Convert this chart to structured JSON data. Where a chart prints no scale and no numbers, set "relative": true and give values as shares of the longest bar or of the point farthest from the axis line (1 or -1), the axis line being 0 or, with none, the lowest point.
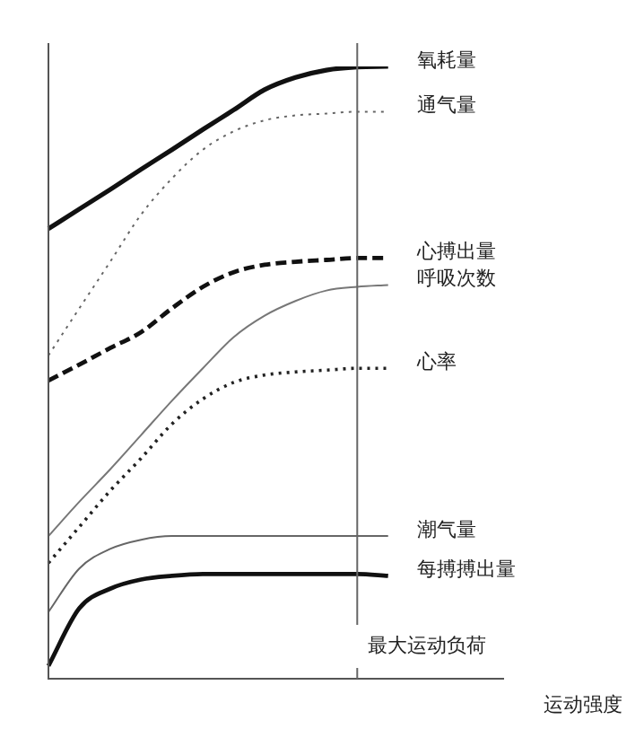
{
  "chart_data": {
    "type": "line",
    "relative": true,
    "xlabel": "运动强度",
    "legend": false,
    "annotations": [
      "最大运动负荷"
    ],
    "categories": [
      null,
      null,
      null,
      null,
      null,
      null,
      null,
      null,
      null,
      null,
      null,
      null,
      null,
      null,
      null
    ],
    "series": [
      {
        "name": "氧耗量",
        "color": "#111111",
        "line_style": "solid",
        "values": [
          0.735,
          0.767,
          0.799,
          0.832,
          0.864,
          0.897,
          0.929,
          0.962,
          0.982,
          0.994,
          0.999,
          1,
          null,
          null,
          null
        ]
      },
      {
        "name": "通气量",
        "color": "#666666",
        "line_style": "dotted",
        "values": [
          0.528,
          0.605,
          0.681,
          0.758,
          0.817,
          0.864,
          0.894,
          0.912,
          0.92,
          0.923,
          0.926,
          0.926,
          null,
          null,
          null
        ]
      },
      {
        "name": "心搏出量",
        "color": "#111111",
        "line_style": "dashed",
        "values": [
          0.487,
          0.513,
          0.54,
          0.566,
          0.605,
          0.64,
          0.664,
          0.676,
          0.681,
          0.684,
          0.687,
          0.687,
          null,
          null,
          null
        ]
      },
      {
        "name": "呼吸次数",
        "color": "#777777",
        "line_style": "solid",
        "values": [
          0.233,
          0.289,
          0.342,
          0.398,
          0.454,
          0.507,
          0.558,
          0.593,
          0.617,
          0.634,
          0.64,
          0.643,
          null,
          null,
          null
        ]
      },
      {
        "name": "心率",
        "color": "#222222",
        "line_style": "dotted",
        "values": [
          0.189,
          0.248,
          0.307,
          0.36,
          0.416,
          0.457,
          0.484,
          0.496,
          0.501,
          0.504,
          0.507,
          0.507,
          null,
          null,
          null
        ]
      },
      {
        "name": "潮气量",
        "color": "#666666",
        "line_style": "solid",
        "values": [
          0.109,
          0.18,
          0.212,
          0.227,
          0.233,
          0.233,
          0.233,
          0.233,
          0.233,
          0.233,
          0.233,
          0.233,
          null,
          null,
          null
        ]
      },
      {
        "name": "每搏搏出量",
        "color": "#111111",
        "line_style": "solid",
        "values": [
          0.021,
          0.115,
          0.147,
          0.162,
          0.168,
          0.171,
          0.171,
          0.171,
          0.171,
          0.171,
          0.171,
          0.168,
          null,
          null,
          null
        ]
      }
    ]
  }
}
